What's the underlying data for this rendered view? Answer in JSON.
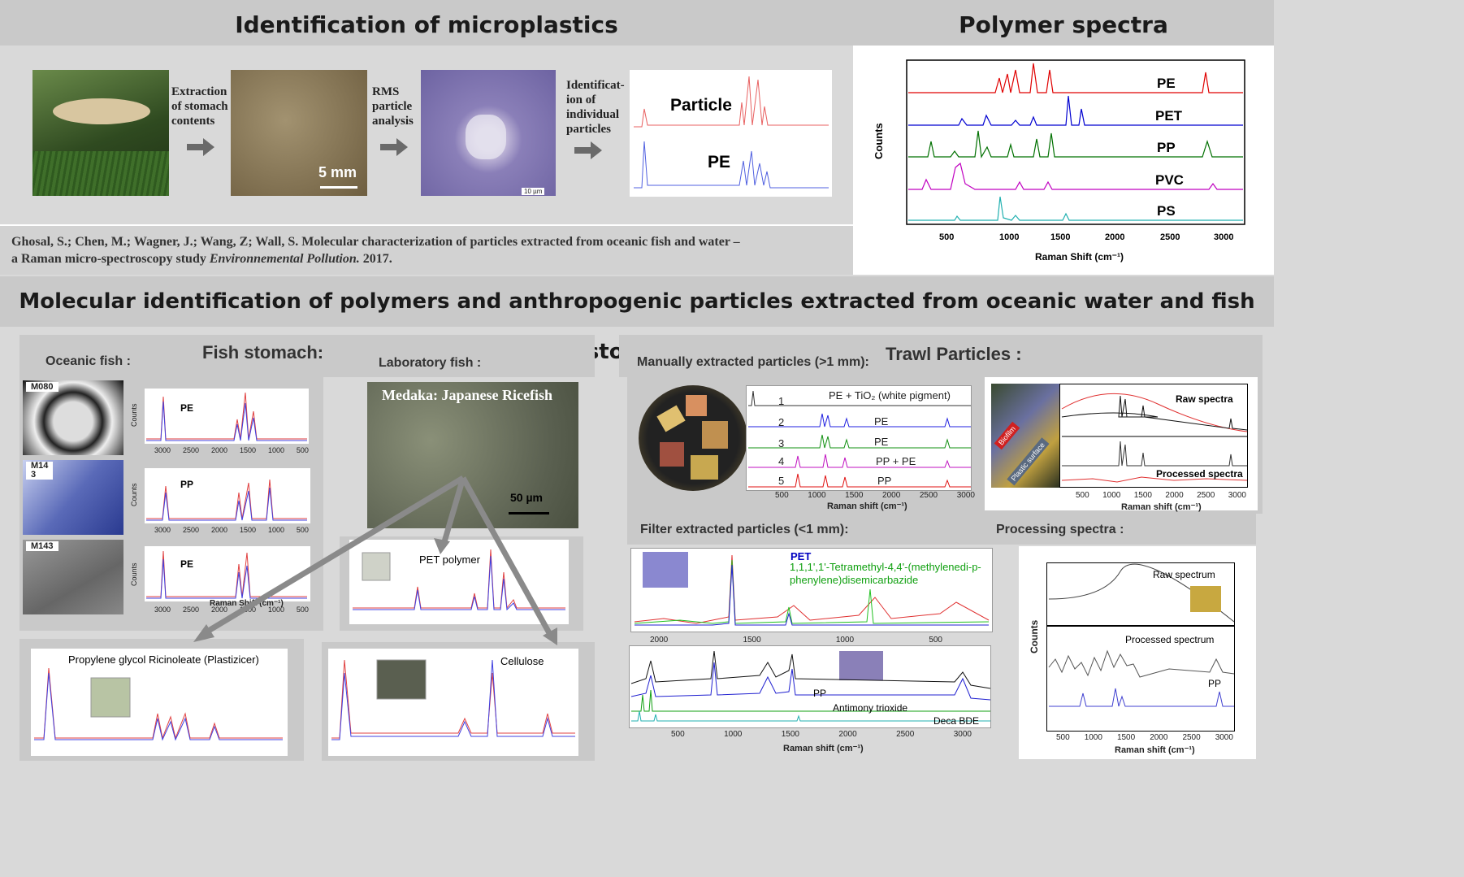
{
  "top_left": {
    "title": "Identification of microplastics",
    "step1": "Extraction\nof stomach\ncontents",
    "step2": "RMS\nparticle\nanalysis",
    "step3": "Identificat-\nion of\nindividual\nparticles",
    "scale_5mm": "5 mm",
    "scale_10um": "10 µm",
    "spec_particle": "Particle",
    "spec_pe": "PE",
    "citation_a": "Ghosal, S.; Chen, M.; Wagner, J.; Wang, Z; Wall, S. Molecular characterization of particles extracted from oceanic fish and water –",
    "citation_b1": "a Raman micro-spectroscopy study ",
    "citation_journal": "Environnemental Pollution.",
    "citation_year": " 2017."
  },
  "polymer_spectra": {
    "title": "Polymer spectra",
    "ylabel": "Counts",
    "xlabel": "Raman Shift (cm⁻¹)",
    "series": [
      "PE",
      "PET",
      "PP",
      "PVC",
      "PS"
    ],
    "ticks": [
      "500",
      "1000",
      "1500",
      "2000",
      "2500",
      "3000"
    ]
  },
  "middle_title": "Molecular identification of polymers and anthropogenic particles extracted from oceanic water and fish stomach",
  "fish": {
    "title": "Fish stomach:",
    "oceanic": "Oceanic fish :",
    "lab": "Laboratory fish :",
    "medaka": "Medaka: Japanese Ricefish",
    "scale": "50 µm",
    "samples": [
      {
        "id": "M080",
        "polymer": "PE"
      },
      {
        "id": "M14\n3",
        "polymer": "PP"
      },
      {
        "id": "M143",
        "polymer": "PE"
      }
    ],
    "counts": "Counts",
    "ticks": [
      "3000",
      "2500",
      "2000",
      "1500",
      "1000",
      "500"
    ],
    "raman_label": "Raman Shift (cm⁻¹)",
    "pet_polymer": "PET polymer",
    "plasticizer": "Propylene glycol Ricinoleate (Plastizicer)",
    "cellulose": "Cellulose"
  },
  "trawl": {
    "title": "Trawl Particles :",
    "manual": "Manually extracted particles (>1 mm):",
    "filter": "Filter extracted particles (<1 mm):",
    "processing": "Processing spectra :",
    "manual_rows": [
      {
        "n": "1",
        "label": "PE + TiO₂ (white pigment)"
      },
      {
        "n": "2",
        "label": "PE"
      },
      {
        "n": "3",
        "label": "PE"
      },
      {
        "n": "4",
        "label": "PP + PE"
      },
      {
        "n": "5",
        "label": "PP"
      }
    ],
    "manual_ticks": [
      "500",
      "1000",
      "1500",
      "2000",
      "2500",
      "3000"
    ],
    "raman_shift": "Raman shift (cm⁻¹)",
    "biofilm": "Biofilm",
    "plastic_surface": "Plastic surface",
    "raw_spectra": "Raw spectra",
    "processed_spectra": "Processed spectra",
    "pet_label": "PET",
    "compound": "1,1,1',1'-Tetramethyl-4,4'-(methylenedi-p-phenylene)disemicarbazide",
    "filter_top_ticks": [
      "2000",
      "1500",
      "1000",
      "500"
    ],
    "pp": "PP",
    "antimony": "Antimony trioxide",
    "deca": "Deca BDE",
    "bottom_ticks": [
      "500",
      "1000",
      "1500",
      "2000",
      "2500",
      "3000"
    ],
    "raw_spectrum": "Raw spectrum",
    "processed_spectrum": "Processed spectrum",
    "counts": "Counts"
  }
}
